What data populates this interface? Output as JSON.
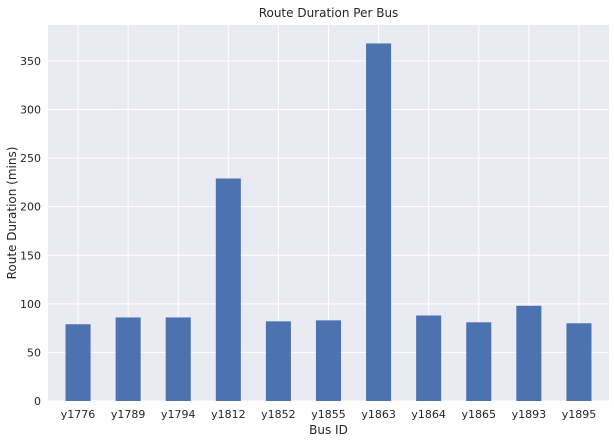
{
  "chart_data": {
    "type": "bar",
    "title": "Route Duration Per Bus",
    "xlabel": "Bus ID",
    "ylabel": "Route Duration (mins)",
    "categories": [
      "y1776",
      "y1789",
      "y1794",
      "y1812",
      "y1852",
      "y1855",
      "y1863",
      "y1864",
      "y1865",
      "y1893",
      "y1895"
    ],
    "values": [
      79,
      86,
      86,
      229,
      82,
      83,
      368,
      88,
      81,
      98,
      80
    ],
    "ylim": [
      0,
      387
    ],
    "yticks": [
      0,
      50,
      100,
      150,
      200,
      250,
      300,
      350
    ],
    "grid": true,
    "colors": {
      "bar": "#4c72b0",
      "background": "#eaeaf2",
      "grid": "#ffffff"
    }
  }
}
